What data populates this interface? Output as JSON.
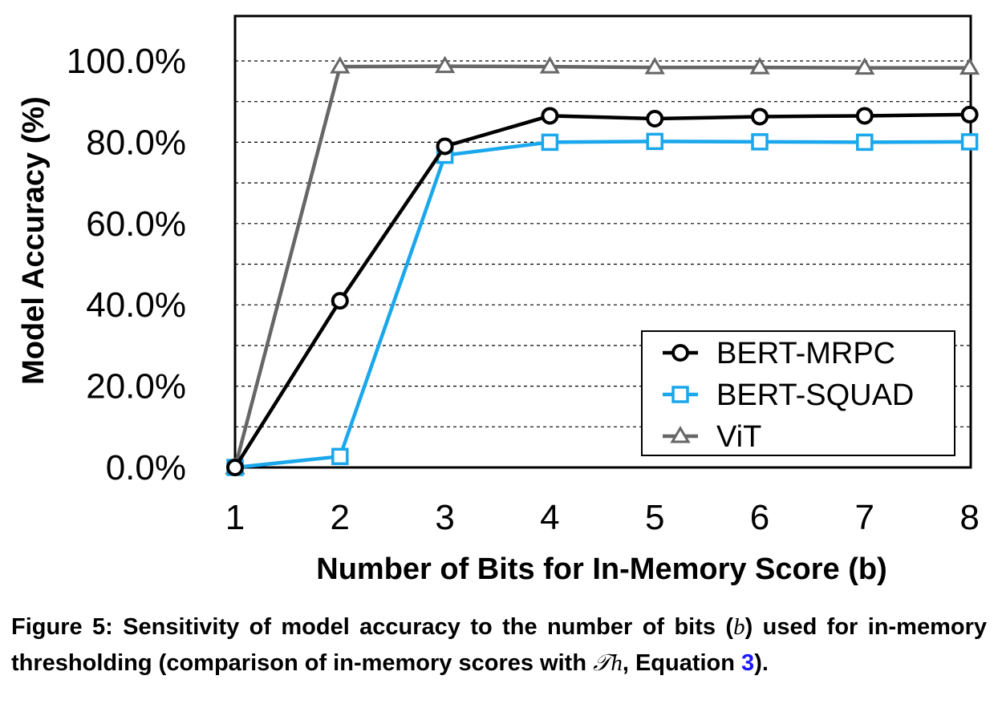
{
  "chart_data": {
    "type": "line",
    "xlabel": "Number of Bits for In-Memory Score (b)",
    "ylabel": "Model Accuracy (%)",
    "x": [
      1,
      2,
      3,
      4,
      5,
      6,
      7,
      8
    ],
    "x_tick_labels": [
      "1",
      "2",
      "3",
      "4",
      "5",
      "6",
      "7",
      "8"
    ],
    "y_tick_labels": [
      "0.0%",
      "20.0%",
      "40.0%",
      "60.0%",
      "80.0%",
      "100.0%"
    ],
    "y_ticks": [
      0,
      20,
      40,
      60,
      80,
      100
    ],
    "xlim": [
      1,
      8
    ],
    "ylim": [
      0,
      105
    ],
    "grid": "horizontal dashed every 10%",
    "legend_position": "bottom-right",
    "series": [
      {
        "name": "BERT-MRPC",
        "marker": "circle",
        "color": "#000000",
        "values": [
          0.0,
          41.0,
          79.0,
          86.5,
          85.8,
          86.3,
          86.5,
          86.8
        ]
      },
      {
        "name": "BERT-SQUAD",
        "marker": "square",
        "color": "#1aa7ec",
        "values": [
          0.0,
          2.7,
          76.8,
          80.0,
          80.2,
          80.1,
          80.0,
          80.1
        ]
      },
      {
        "name": "ViT",
        "marker": "triangle",
        "color": "#666666",
        "values": [
          0.0,
          98.6,
          98.7,
          98.6,
          98.4,
          98.4,
          98.3,
          98.3
        ]
      }
    ]
  },
  "caption": {
    "prefix": "Figure 5: Sensitivity of model accuracy to the number of bits (",
    "var_b": "b",
    "mid": ") used for in-memory thresholding (comparison of in-memory scores with ",
    "var_th": "𝒯h",
    "after_th": ", Equation ",
    "ref": "3",
    "end": ")."
  }
}
